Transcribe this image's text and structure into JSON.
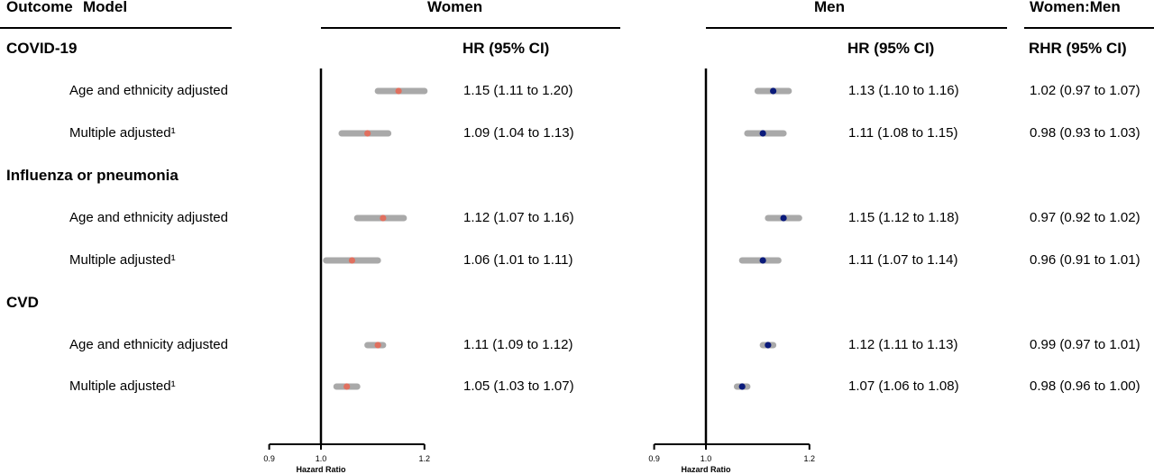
{
  "header": {
    "outcome_label": "Outcome",
    "model_label": "Model",
    "women_label": "Women",
    "men_label": "Men",
    "ratio_label": "Women:Men"
  },
  "columns": {
    "women_hr": "HR (95% CI)",
    "men_hr": "HR (95% CI)",
    "ratio": "RHR (95% CI)"
  },
  "colors": {
    "women_point": "#e0705f",
    "men_point": "#0a1a7a",
    "ci_bar": "#a9a9a9",
    "axis": "#000000"
  },
  "outcomes": [
    {
      "name": "COVID-19",
      "rows": [
        {
          "model": "Age and ethnicity adjusted",
          "women_text": "1.15 (1.11 to 1.20)",
          "men_text": "1.13 (1.10 to 1.16)",
          "ratio_text": "1.02 (0.97 to 1.07)"
        },
        {
          "model": "Multiple adjusted¹",
          "women_text": "1.09 (1.04 to 1.13)",
          "men_text": "1.11 (1.08 to 1.15)",
          "ratio_text": "0.98 (0.93 to 1.03)"
        }
      ]
    },
    {
      "name": "Influenza or pneumonia",
      "rows": [
        {
          "model": "Age and ethnicity adjusted",
          "women_text": "1.12 (1.07 to 1.16)",
          "men_text": "1.15 (1.12 to 1.18)",
          "ratio_text": "0.97 (0.92 to 1.02)"
        },
        {
          "model": "Multiple adjusted¹",
          "women_text": "1.06 (1.01 to 1.11)",
          "men_text": "1.11 (1.07 to 1.14)",
          "ratio_text": "0.96 (0.91 to 1.01)"
        }
      ]
    },
    {
      "name": "CVD",
      "rows": [
        {
          "model": "Age and ethnicity adjusted",
          "women_text": "1.11 (1.09 to 1.12)",
          "men_text": "1.12 (1.11 to 1.13)",
          "ratio_text": "0.99 (0.97 to 1.01)"
        },
        {
          "model": "Multiple adjusted¹",
          "women_text": "1.05 (1.03 to 1.07)",
          "men_text": "1.07 (1.06 to 1.08)",
          "ratio_text": "0.98 (0.96 to 1.00)"
        }
      ]
    }
  ],
  "chart_data": {
    "type": "scatter",
    "subtype": "forest",
    "xlabel": "Hazard Ratio",
    "xlim": [
      0.9,
      1.2
    ],
    "xticks": [
      0.9,
      1.0,
      1.2
    ],
    "xtick_labels": [
      "0.9",
      "1.0",
      "1.2"
    ],
    "reference_line": 1.0,
    "grid": false,
    "categories": [
      "COVID-19 · Age and ethnicity adjusted",
      "COVID-19 · Multiple adjusted¹",
      "Influenza or pneumonia · Age and ethnicity adjusted",
      "Influenza or pneumonia · Multiple adjusted¹",
      "CVD · Age and ethnicity adjusted",
      "CVD · Multiple adjusted¹"
    ],
    "series": [
      {
        "name": "Women",
        "color": "#e0705f",
        "hr": [
          1.15,
          1.09,
          1.12,
          1.06,
          1.11,
          1.05
        ],
        "ci_low": [
          1.11,
          1.04,
          1.07,
          1.01,
          1.09,
          1.03
        ],
        "ci_high": [
          1.2,
          1.13,
          1.16,
          1.11,
          1.12,
          1.07
        ]
      },
      {
        "name": "Men",
        "color": "#0a1a7a",
        "hr": [
          1.13,
          1.11,
          1.15,
          1.11,
          1.12,
          1.07
        ],
        "ci_low": [
          1.1,
          1.08,
          1.12,
          1.07,
          1.11,
          1.06
        ],
        "ci_high": [
          1.16,
          1.15,
          1.18,
          1.14,
          1.13,
          1.08
        ]
      }
    ]
  }
}
